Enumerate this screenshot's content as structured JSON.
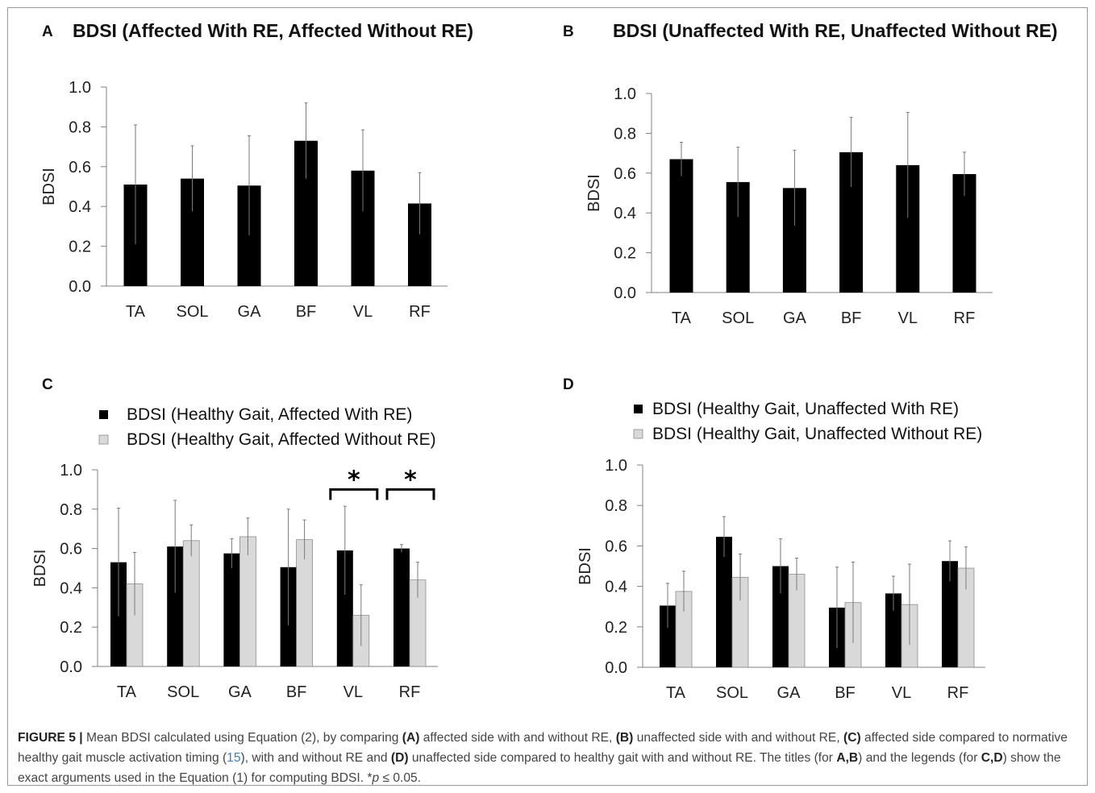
{
  "figure": {
    "caption": {
      "label": "FIGURE 5 |",
      "p1": " Mean BDSI calculated using Equation (2), by comparing ",
      "A": "(A)",
      "p2": " affected side with and without RE, ",
      "B": "(B)",
      "p3": " unaffected side with and without RE, ",
      "C": "(C)",
      "p4": " affected side compared to normative healthy gait muscle activation timing (",
      "ref": "15",
      "p5": "), with and without RE and ",
      "D": "(D)",
      "p6": " unaffected side compared to healthy gait with and without RE. The titles (for ",
      "AB": "A,B",
      "p7": ") and the legends (for ",
      "CD": "C,D",
      "p8": ") show the exact arguments used in the Equation (1) for computing BDSI. ",
      "p9": "*",
      "pvar": "p",
      "p10": " ≤ 0.05."
    }
  },
  "style": {
    "dark_bar": "#000000",
    "light_bar": "#d9d9d9",
    "axis_color": "#808080"
  },
  "chart_data": [
    {
      "panel": "A",
      "type": "bar",
      "title": "BDSI (Affected With RE, Affected Without RE)",
      "ylabel": "BDSI",
      "ylim": [
        0,
        1.0
      ],
      "ticks": [
        "0.0",
        "0.2",
        "0.4",
        "0.6",
        "0.8",
        "1.0"
      ],
      "categories": [
        "TA",
        "SOL",
        "GA",
        "BF",
        "VL",
        "RF"
      ],
      "series": [
        {
          "color": "#000000",
          "values": [
            0.51,
            0.54,
            0.505,
            0.73,
            0.58,
            0.415
          ],
          "errors": [
            0.3,
            0.165,
            0.25,
            0.19,
            0.205,
            0.155
          ]
        }
      ],
      "legend": [],
      "significance": []
    },
    {
      "panel": "B",
      "type": "bar",
      "title": "BDSI (Unaffected With RE, Unaffected Without RE)",
      "ylabel": "BDSI",
      "ylim": [
        0,
        1.0
      ],
      "ticks": [
        "0.0",
        "0.2",
        "0.4",
        "0.6",
        "0.8",
        "1.0"
      ],
      "categories": [
        "TA",
        "SOL",
        "GA",
        "BF",
        "VL",
        "RF"
      ],
      "series": [
        {
          "color": "#000000",
          "values": [
            0.67,
            0.555,
            0.525,
            0.705,
            0.64,
            0.595
          ],
          "errors": [
            0.085,
            0.175,
            0.19,
            0.175,
            0.265,
            0.11
          ]
        }
      ],
      "legend": [],
      "significance": []
    },
    {
      "panel": "C",
      "type": "bar",
      "title": "",
      "ylabel": "BDSI",
      "ylim": [
        0,
        1.0
      ],
      "ticks": [
        "0.0",
        "0.2",
        "0.4",
        "0.6",
        "0.8",
        "1.0"
      ],
      "categories": [
        "TA",
        "SOL",
        "GA",
        "BF",
        "VL",
        "RF"
      ],
      "series": [
        {
          "name": "BDSI (Healthy Gait, Affected With RE)",
          "color": "#000000",
          "values": [
            0.53,
            0.61,
            0.575,
            0.505,
            0.59,
            0.6
          ],
          "errors": [
            0.275,
            0.235,
            0.075,
            0.295,
            0.225,
            0.02
          ]
        },
        {
          "name": "BDSI (Healthy Gait, Affected Without RE)",
          "color": "#d9d9d9",
          "values": [
            0.42,
            0.64,
            0.66,
            0.645,
            0.26,
            0.44
          ],
          "errors": [
            0.16,
            0.08,
            0.095,
            0.1,
            0.155,
            0.09
          ]
        }
      ],
      "legend": [
        "BDSI (Healthy Gait, Affected With RE)",
        "BDSI (Healthy Gait, Affected Without RE)"
      ],
      "significance": [
        {
          "category": "VL",
          "marker": "*"
        },
        {
          "category": "RF",
          "marker": "*"
        }
      ]
    },
    {
      "panel": "D",
      "type": "bar",
      "title": "",
      "ylabel": "BDSI",
      "ylim": [
        0,
        1.0
      ],
      "ticks": [
        "0.0",
        "0.2",
        "0.4",
        "0.6",
        "0.8",
        "1.0"
      ],
      "categories": [
        "TA",
        "SOL",
        "GA",
        "BF",
        "VL",
        "RF"
      ],
      "series": [
        {
          "name": "BDSI (Healthy Gait, Unaffected With RE)",
          "color": "#000000",
          "values": [
            0.305,
            0.645,
            0.5,
            0.295,
            0.365,
            0.525
          ],
          "errors": [
            0.11,
            0.1,
            0.135,
            0.2,
            0.085,
            0.1
          ]
        },
        {
          "name": "BDSI (Healthy Gait, Unaffected Without RE)",
          "color": "#d9d9d9",
          "values": [
            0.375,
            0.445,
            0.46,
            0.32,
            0.31,
            0.49
          ],
          "errors": [
            0.1,
            0.115,
            0.08,
            0.2,
            0.2,
            0.105
          ]
        }
      ],
      "legend": [
        "BDSI (Healthy Gait, Unaffected With RE)",
        "BDSI (Healthy Gait, Unaffected Without RE)"
      ],
      "significance": []
    }
  ]
}
